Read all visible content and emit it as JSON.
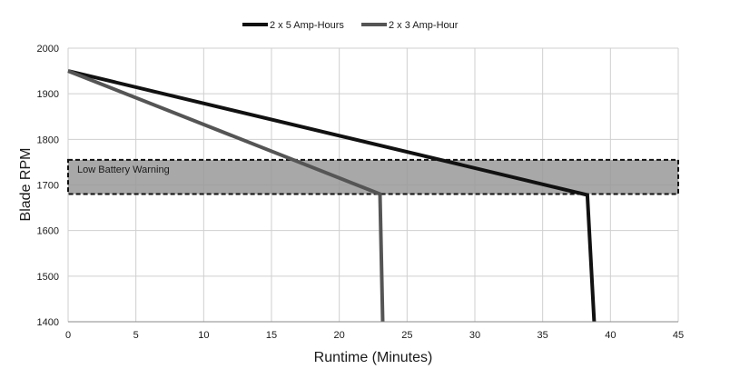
{
  "chart_data": {
    "type": "line",
    "title": "",
    "xlabel": "Runtime (Minutes)",
    "ylabel": "Blade RPM",
    "xlim": [
      0,
      45
    ],
    "ylim": [
      1400,
      2000
    ],
    "xticks": [
      0,
      5,
      10,
      15,
      20,
      25,
      30,
      35,
      40,
      45
    ],
    "yticks": [
      1400,
      1500,
      1600,
      1700,
      1800,
      1900,
      2000
    ],
    "grid": true,
    "legend_position": "top",
    "series": [
      {
        "name": "2 x 5 Amp-Hours",
        "color": "#111111",
        "points": [
          [
            0,
            1950
          ],
          [
            38.3,
            1678
          ],
          [
            38.8,
            1400
          ]
        ]
      },
      {
        "name": "2 x 3 Amp-Hour",
        "color": "#555555",
        "points": [
          [
            0,
            1950
          ],
          [
            23,
            1680
          ],
          [
            23.2,
            1400
          ]
        ]
      }
    ],
    "bands": [
      {
        "label": "Low Battery Warning",
        "y_range": [
          1680,
          1755
        ],
        "color": "#999999"
      }
    ]
  }
}
